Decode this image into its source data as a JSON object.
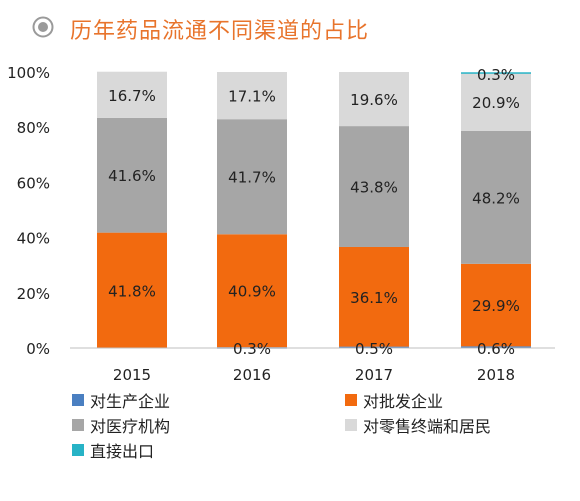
{
  "title": "历年药品流通不同渠道的占比",
  "chart_data": {
    "type": "bar",
    "stacked": true,
    "categories": [
      "2015",
      "2016",
      "2017",
      "2018"
    ],
    "ylim": [
      0,
      100
    ],
    "yticks": [
      "0%",
      "20%",
      "40%",
      "60%",
      "80%",
      "100%"
    ],
    "series": [
      {
        "name": "对生产企业",
        "color": "#4a7fc1",
        "values": [
          0,
          0.3,
          0.5,
          0.6
        ],
        "labels": [
          "",
          "0.3%",
          "0.5%",
          "0.6%"
        ]
      },
      {
        "name": "对批发企业",
        "color": "#f26a0f",
        "values": [
          41.8,
          40.9,
          36.1,
          29.9
        ],
        "labels": [
          "41.8%",
          "40.9%",
          "36.1%",
          "29.9%"
        ]
      },
      {
        "name": "对医疗机构",
        "color": "#a6a6a6",
        "values": [
          41.6,
          41.7,
          43.8,
          48.2
        ],
        "labels": [
          "41.6%",
          "41.7%",
          "43.8%",
          "48.2%"
        ]
      },
      {
        "name": "对零售终端和居民",
        "color": "#d9d9d9",
        "values": [
          16.7,
          17.1,
          19.6,
          20.9
        ],
        "labels": [
          "16.7%",
          "17.1%",
          "19.6%",
          "20.9%"
        ]
      },
      {
        "name": "直接出口",
        "color": "#27b3c6",
        "values": [
          0,
          0,
          0,
          0.3
        ],
        "labels": [
          "",
          "",
          "",
          "0.3%"
        ]
      }
    ]
  }
}
